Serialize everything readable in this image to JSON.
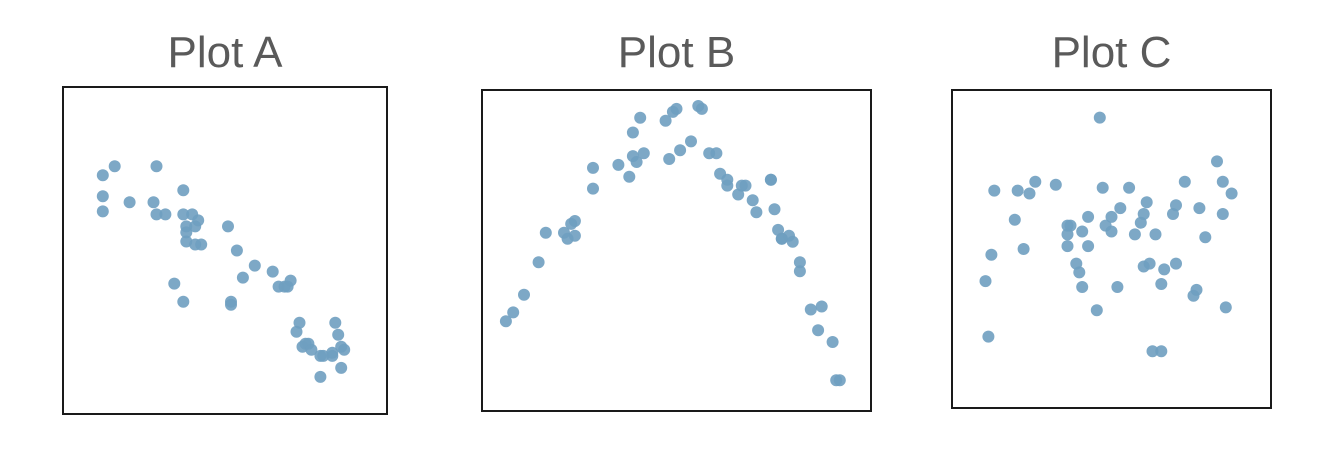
{
  "point_color": "#6f9fc0",
  "chart_data": [
    {
      "type": "scatter",
      "title": "Plot A",
      "xlabel": "",
      "ylabel": "",
      "xlim": [
        0,
        100
      ],
      "ylim": [
        0,
        100
      ],
      "grid": false,
      "x": [
        9,
        9,
        9,
        13,
        18,
        26,
        27,
        27,
        30,
        33,
        36,
        36,
        36,
        37,
        37,
        37,
        39,
        40,
        40,
        41,
        42,
        51,
        52,
        52,
        54,
        56,
        60,
        66,
        68,
        70,
        71,
        72,
        74,
        75,
        76,
        77,
        78,
        79,
        82,
        82,
        83,
        86,
        86,
        87,
        88,
        89,
        89,
        90
      ],
      "y": [
        75,
        68,
        63,
        78,
        66,
        66,
        78,
        62,
        62,
        39,
        33,
        70,
        62,
        58,
        56,
        53,
        62,
        58,
        52,
        60,
        52,
        58,
        33,
        32,
        50,
        41,
        45,
        43,
        38,
        38,
        38,
        40,
        23,
        26,
        18,
        19,
        19,
        17,
        8,
        15,
        15,
        15,
        16,
        26,
        22,
        18,
        11,
        17
      ]
    },
    {
      "type": "scatter",
      "title": "Plot B",
      "xlabel": "",
      "ylabel": "",
      "xlim": [
        0,
        100
      ],
      "ylim": [
        0,
        100
      ],
      "grid": false,
      "x": [
        3,
        5,
        8,
        12,
        14,
        19,
        20,
        21,
        22,
        22,
        27,
        27,
        34,
        37,
        38,
        38,
        39,
        40,
        41,
        47,
        48,
        49,
        50,
        51,
        54,
        56,
        57,
        59,
        61,
        62,
        64,
        64,
        67,
        68,
        69,
        71,
        72,
        76,
        76,
        77,
        78,
        79,
        79,
        81,
        82,
        84,
        84,
        87,
        89,
        90,
        93,
        94,
        95
      ],
      "y": [
        26,
        29,
        35,
        46,
        56,
        56,
        54,
        59,
        60,
        55,
        71,
        78,
        79,
        75,
        82,
        90,
        80,
        95,
        83,
        94,
        81,
        97,
        98,
        84,
        87,
        99,
        98,
        83,
        83,
        76,
        74,
        72,
        69,
        72,
        72,
        67,
        63,
        74,
        74,
        64,
        57,
        54,
        54,
        55,
        53,
        43,
        46,
        30,
        23,
        31,
        19,
        6,
        6
      ]
    },
    {
      "type": "scatter",
      "title": "Plot C",
      "xlabel": "",
      "ylabel": "",
      "xlim": [
        0,
        100
      ],
      "ylim": [
        0,
        100
      ],
      "grid": false,
      "x": [
        7,
        8,
        9,
        10,
        17,
        18,
        20,
        22,
        24,
        31,
        35,
        35,
        35,
        36,
        38,
        39,
        40,
        40,
        42,
        42,
        45,
        46,
        47,
        48,
        50,
        50,
        52,
        53,
        56,
        58,
        60,
        61,
        61,
        62,
        63,
        64,
        65,
        67,
        67,
        68,
        71,
        72,
        72,
        75,
        78,
        79,
        80,
        82,
        86,
        88,
        88,
        89,
        91
      ],
      "y": [
        39,
        20,
        48,
        70,
        60,
        70,
        50,
        69,
        73,
        72,
        51,
        55,
        58,
        58,
        45,
        42,
        37,
        56,
        61,
        51,
        29,
        95,
        71,
        58,
        56,
        61,
        37,
        64,
        71,
        55,
        59,
        62,
        44,
        66,
        45,
        15,
        55,
        15,
        38,
        43,
        62,
        45,
        65,
        73,
        34,
        36,
        64,
        54,
        80,
        62,
        73,
        30,
        69
      ]
    }
  ]
}
